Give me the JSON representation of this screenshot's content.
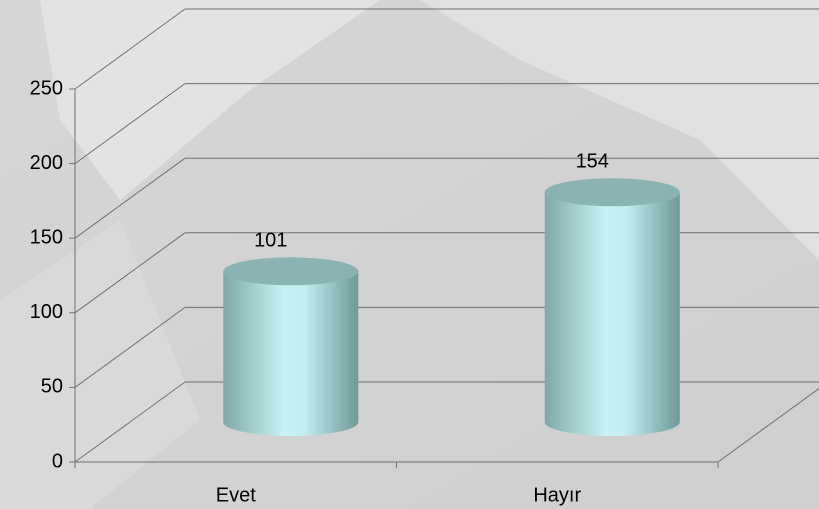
{
  "chart_data": {
    "type": "bar",
    "categories": [
      "Evet",
      "Hayır"
    ],
    "values": [
      101,
      154
    ],
    "color": "#9fd3d4",
    "ylim": [
      0,
      250
    ],
    "yticks": [
      0,
      50,
      100,
      150,
      200,
      250
    ],
    "grid": true
  }
}
